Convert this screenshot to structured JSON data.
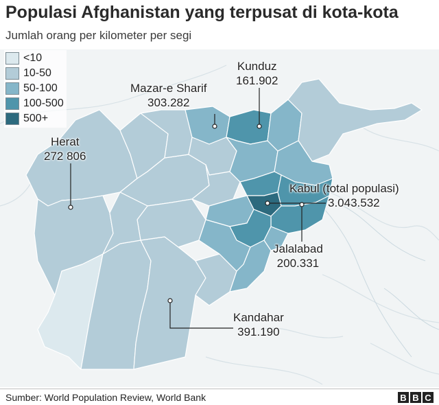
{
  "title": "Populasi Afghanistan yang terpusat di kota-kota",
  "subtitle": "Jumlah orang per kilometer per segi",
  "legend": [
    {
      "label": "<10",
      "color": "#dce9ee"
    },
    {
      "label": "10-50",
      "color": "#b3ccd8"
    },
    {
      "label": "50-100",
      "color": "#85b6c9"
    },
    {
      "label": "100-500",
      "color": "#4f95ab"
    },
    {
      "label": "500+",
      "color": "#2d6a7e"
    }
  ],
  "cities": [
    {
      "name": "Mazar-e Sharif",
      "population": "303.282"
    },
    {
      "name": "Kunduz",
      "population": "161.902"
    },
    {
      "name": "Herat",
      "population": "272 806"
    },
    {
      "name": "Kabul (total populasi)",
      "population": "3.043.532"
    },
    {
      "name": "Jalalabad",
      "population": "200.331"
    },
    {
      "name": "Kandahar",
      "population": "391.190"
    }
  ],
  "source": "Sumber: World Population Review, World Bank",
  "logo": [
    "B",
    "B",
    "C"
  ],
  "colors": {
    "background_land": "#f1f4f5",
    "border_lines": "#ffffff",
    "river": "#d7e1e6"
  }
}
